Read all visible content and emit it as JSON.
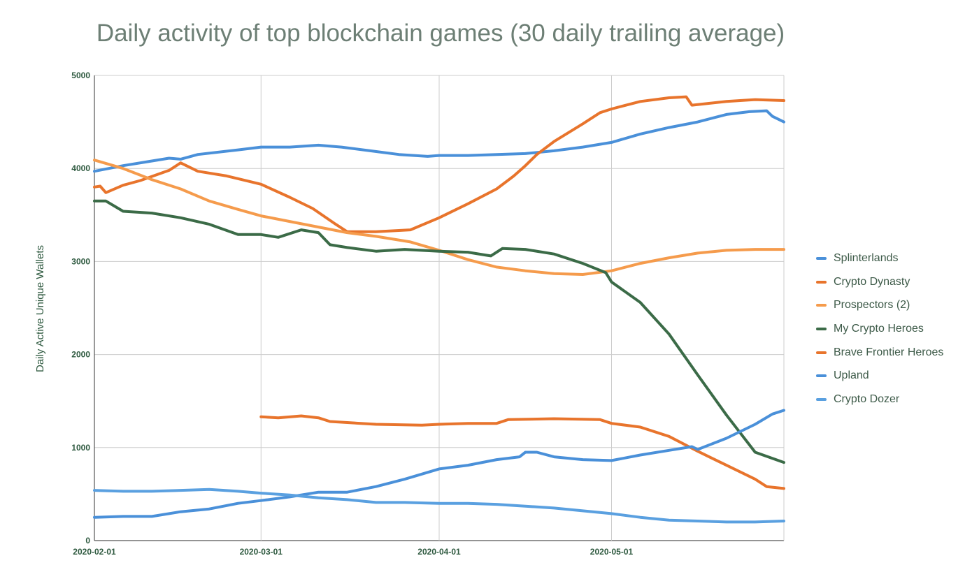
{
  "chart_data": {
    "type": "line",
    "title": "Daily activity of top blockchain games (30 daily trailing average)",
    "xlabel": "",
    "ylabel": "Daily Active Unique Wallets",
    "xlim": [
      "2020-02-01",
      "2020-05-31"
    ],
    "ylim": [
      0,
      5000
    ],
    "x_ticks": [
      "2020-02-01",
      "2020-03-01",
      "2020-04-01",
      "2020-05-01"
    ],
    "y_ticks": [
      0,
      1000,
      2000,
      3000,
      4000,
      5000
    ],
    "grid": true,
    "legend_position": "right",
    "series": [
      {
        "name": "Splinterlands",
        "color": "#4a90d9",
        "points": [
          [
            "2020-02-01",
            3970
          ],
          [
            "2020-02-06",
            4030
          ],
          [
            "2020-02-11",
            4080
          ],
          [
            "2020-02-14",
            4110
          ],
          [
            "2020-02-16",
            4100
          ],
          [
            "2020-02-19",
            4150
          ],
          [
            "2020-02-26",
            4200
          ],
          [
            "2020-03-01",
            4230
          ],
          [
            "2020-03-06",
            4230
          ],
          [
            "2020-03-11",
            4250
          ],
          [
            "2020-03-15",
            4230
          ],
          [
            "2020-03-20",
            4190
          ],
          [
            "2020-03-25",
            4150
          ],
          [
            "2020-03-30",
            4130
          ],
          [
            "2020-04-01",
            4140
          ],
          [
            "2020-04-06",
            4140
          ],
          [
            "2020-04-11",
            4150
          ],
          [
            "2020-04-16",
            4160
          ],
          [
            "2020-04-21",
            4190
          ],
          [
            "2020-04-26",
            4230
          ],
          [
            "2020-05-01",
            4280
          ],
          [
            "2020-05-06",
            4370
          ],
          [
            "2020-05-11",
            4440
          ],
          [
            "2020-05-16",
            4500
          ],
          [
            "2020-05-21",
            4580
          ],
          [
            "2020-05-25",
            4610
          ],
          [
            "2020-05-28",
            4620
          ],
          [
            "2020-05-29",
            4560
          ],
          [
            "2020-05-31",
            4500
          ]
        ]
      },
      {
        "name": "Crypto Dynasty",
        "color": "#e8742c",
        "points": [
          [
            "2020-02-01",
            3800
          ],
          [
            "2020-02-02",
            3810
          ],
          [
            "2020-02-03",
            3740
          ],
          [
            "2020-02-06",
            3820
          ],
          [
            "2020-02-09",
            3870
          ],
          [
            "2020-02-14",
            3980
          ],
          [
            "2020-02-16",
            4060
          ],
          [
            "2020-02-19",
            3970
          ],
          [
            "2020-02-24",
            3920
          ],
          [
            "2020-03-01",
            3830
          ],
          [
            "2020-03-06",
            3690
          ],
          [
            "2020-03-10",
            3570
          ],
          [
            "2020-03-14",
            3400
          ],
          [
            "2020-03-16",
            3320
          ],
          [
            "2020-03-21",
            3320
          ],
          [
            "2020-03-27",
            3340
          ],
          [
            "2020-04-01",
            3470
          ],
          [
            "2020-04-06",
            3620
          ],
          [
            "2020-04-11",
            3780
          ],
          [
            "2020-04-14",
            3920
          ],
          [
            "2020-04-16",
            4030
          ],
          [
            "2020-04-18",
            4150
          ],
          [
            "2020-04-21",
            4290
          ],
          [
            "2020-04-26",
            4480
          ],
          [
            "2020-04-29",
            4600
          ],
          [
            "2020-05-01",
            4640
          ],
          [
            "2020-05-06",
            4720
          ],
          [
            "2020-05-11",
            4760
          ],
          [
            "2020-05-14",
            4770
          ],
          [
            "2020-05-15",
            4680
          ],
          [
            "2020-05-21",
            4720
          ],
          [
            "2020-05-26",
            4740
          ],
          [
            "2020-05-31",
            4730
          ]
        ]
      },
      {
        "name": "Prospectors (2)",
        "color": "#f59b4c",
        "points": [
          [
            "2020-02-01",
            4090
          ],
          [
            "2020-02-06",
            4000
          ],
          [
            "2020-02-11",
            3880
          ],
          [
            "2020-02-16",
            3780
          ],
          [
            "2020-02-21",
            3650
          ],
          [
            "2020-02-26",
            3560
          ],
          [
            "2020-03-01",
            3490
          ],
          [
            "2020-03-06",
            3430
          ],
          [
            "2020-03-11",
            3370
          ],
          [
            "2020-03-16",
            3310
          ],
          [
            "2020-03-21",
            3270
          ],
          [
            "2020-03-27",
            3210
          ],
          [
            "2020-04-01",
            3120
          ],
          [
            "2020-04-06",
            3020
          ],
          [
            "2020-04-11",
            2940
          ],
          [
            "2020-04-16",
            2900
          ],
          [
            "2020-04-21",
            2870
          ],
          [
            "2020-04-26",
            2860
          ],
          [
            "2020-05-01",
            2900
          ],
          [
            "2020-05-06",
            2980
          ],
          [
            "2020-05-11",
            3040
          ],
          [
            "2020-05-16",
            3090
          ],
          [
            "2020-05-21",
            3120
          ],
          [
            "2020-05-26",
            3130
          ],
          [
            "2020-05-31",
            3130
          ]
        ]
      },
      {
        "name": "My Crypto Heroes",
        "color": "#3b6b47",
        "points": [
          [
            "2020-02-01",
            3650
          ],
          [
            "2020-02-03",
            3650
          ],
          [
            "2020-02-06",
            3540
          ],
          [
            "2020-02-11",
            3520
          ],
          [
            "2020-02-16",
            3470
          ],
          [
            "2020-02-21",
            3400
          ],
          [
            "2020-02-26",
            3290
          ],
          [
            "2020-03-01",
            3290
          ],
          [
            "2020-03-04",
            3260
          ],
          [
            "2020-03-08",
            3340
          ],
          [
            "2020-03-11",
            3310
          ],
          [
            "2020-03-13",
            3180
          ],
          [
            "2020-03-16",
            3150
          ],
          [
            "2020-03-21",
            3110
          ],
          [
            "2020-03-26",
            3130
          ],
          [
            "2020-04-01",
            3110
          ],
          [
            "2020-04-06",
            3100
          ],
          [
            "2020-04-09",
            3070
          ],
          [
            "2020-04-10",
            3060
          ],
          [
            "2020-04-12",
            3140
          ],
          [
            "2020-04-16",
            3130
          ],
          [
            "2020-04-21",
            3080
          ],
          [
            "2020-04-26",
            2980
          ],
          [
            "2020-04-30",
            2880
          ],
          [
            "2020-05-01",
            2780
          ],
          [
            "2020-05-06",
            2560
          ],
          [
            "2020-05-11",
            2220
          ],
          [
            "2020-05-16",
            1780
          ],
          [
            "2020-05-21",
            1350
          ],
          [
            "2020-05-26",
            950
          ],
          [
            "2020-05-31",
            840
          ]
        ]
      },
      {
        "name": "Brave Frontier Heroes",
        "color": "#e8742c",
        "points": [
          [
            "2020-03-01",
            1330
          ],
          [
            "2020-03-04",
            1320
          ],
          [
            "2020-03-08",
            1340
          ],
          [
            "2020-03-11",
            1320
          ],
          [
            "2020-03-13",
            1280
          ],
          [
            "2020-03-21",
            1250
          ],
          [
            "2020-03-29",
            1240
          ],
          [
            "2020-04-01",
            1250
          ],
          [
            "2020-04-06",
            1260
          ],
          [
            "2020-04-11",
            1260
          ],
          [
            "2020-04-13",
            1300
          ],
          [
            "2020-04-21",
            1310
          ],
          [
            "2020-04-29",
            1300
          ],
          [
            "2020-05-01",
            1260
          ],
          [
            "2020-05-06",
            1220
          ],
          [
            "2020-05-11",
            1120
          ],
          [
            "2020-05-16",
            960
          ],
          [
            "2020-05-21",
            810
          ],
          [
            "2020-05-26",
            660
          ],
          [
            "2020-05-28",
            580
          ],
          [
            "2020-05-31",
            560
          ]
        ]
      },
      {
        "name": "Upland",
        "color": "#4a90d9",
        "points": [
          [
            "2020-02-01",
            250
          ],
          [
            "2020-02-06",
            260
          ],
          [
            "2020-02-11",
            260
          ],
          [
            "2020-02-16",
            310
          ],
          [
            "2020-02-21",
            340
          ],
          [
            "2020-02-26",
            400
          ],
          [
            "2020-03-01",
            430
          ],
          [
            "2020-03-06",
            470
          ],
          [
            "2020-03-11",
            520
          ],
          [
            "2020-03-16",
            520
          ],
          [
            "2020-03-21",
            580
          ],
          [
            "2020-03-26",
            660
          ],
          [
            "2020-04-01",
            770
          ],
          [
            "2020-04-06",
            810
          ],
          [
            "2020-04-11",
            870
          ],
          [
            "2020-04-15",
            900
          ],
          [
            "2020-04-16",
            950
          ],
          [
            "2020-04-18",
            950
          ],
          [
            "2020-04-21",
            900
          ],
          [
            "2020-04-26",
            870
          ],
          [
            "2020-05-01",
            860
          ],
          [
            "2020-05-06",
            920
          ],
          [
            "2020-05-11",
            970
          ],
          [
            "2020-05-15",
            1010
          ],
          [
            "2020-05-16",
            980
          ],
          [
            "2020-05-21",
            1100
          ],
          [
            "2020-05-26",
            1250
          ],
          [
            "2020-05-29",
            1360
          ],
          [
            "2020-05-31",
            1400
          ]
        ]
      },
      {
        "name": "Crypto Dozer",
        "color": "#5aa0e0",
        "points": [
          [
            "2020-02-01",
            540
          ],
          [
            "2020-02-06",
            530
          ],
          [
            "2020-02-11",
            530
          ],
          [
            "2020-02-16",
            540
          ],
          [
            "2020-02-21",
            550
          ],
          [
            "2020-02-26",
            530
          ],
          [
            "2020-03-01",
            510
          ],
          [
            "2020-03-06",
            490
          ],
          [
            "2020-03-11",
            460
          ],
          [
            "2020-03-16",
            440
          ],
          [
            "2020-03-21",
            410
          ],
          [
            "2020-03-26",
            410
          ],
          [
            "2020-04-01",
            400
          ],
          [
            "2020-04-06",
            400
          ],
          [
            "2020-04-11",
            390
          ],
          [
            "2020-04-16",
            370
          ],
          [
            "2020-04-21",
            350
          ],
          [
            "2020-04-26",
            320
          ],
          [
            "2020-05-01",
            290
          ],
          [
            "2020-05-06",
            250
          ],
          [
            "2020-05-11",
            220
          ],
          [
            "2020-05-16",
            210
          ],
          [
            "2020-05-21",
            200
          ],
          [
            "2020-05-26",
            200
          ],
          [
            "2020-05-31",
            210
          ]
        ]
      }
    ]
  }
}
